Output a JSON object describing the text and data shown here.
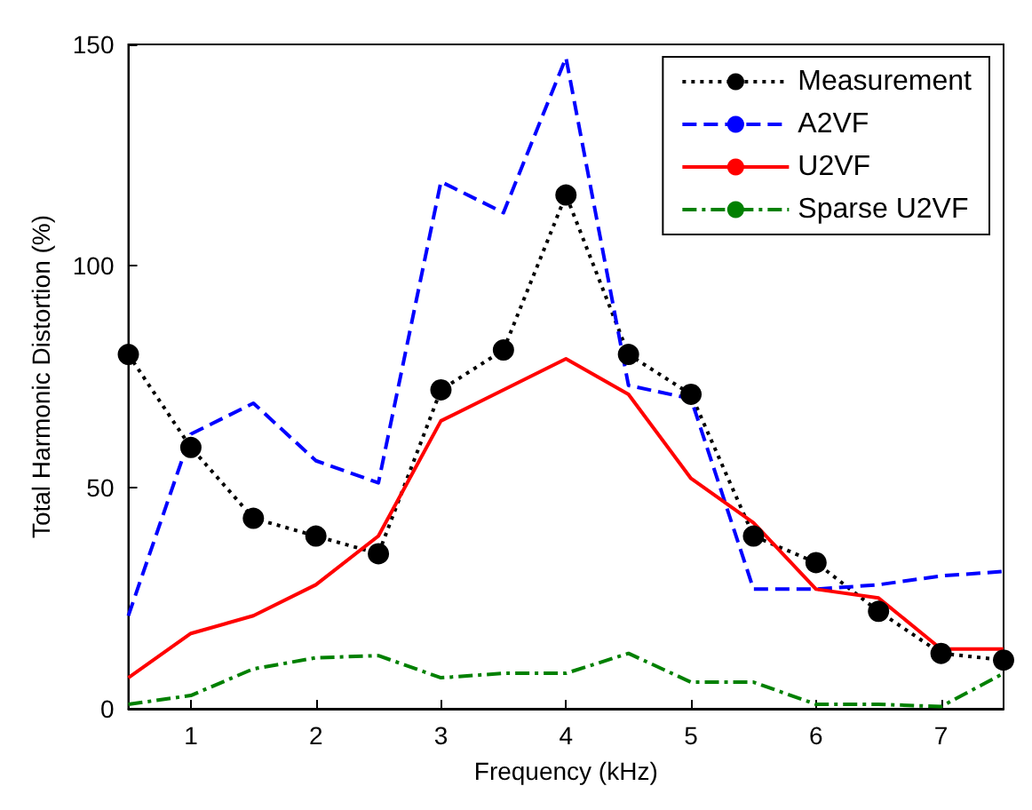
{
  "chart_data": {
    "type": "line",
    "xlabel": "Frequency (kHz)",
    "ylabel": "Total Harmonic Distortion (%)",
    "x": [
      0.5,
      1,
      1.5,
      2,
      2.5,
      3,
      3.5,
      4,
      4.5,
      5,
      5.5,
      6,
      6.5,
      7,
      7.5
    ],
    "xlim": [
      0.5,
      7.5
    ],
    "xticks": [
      1,
      2,
      3,
      4,
      5,
      6,
      7
    ],
    "ylim": [
      0,
      150
    ],
    "yticks": [
      0,
      50,
      100,
      150
    ],
    "grid": false,
    "legend": "top right",
    "series": [
      {
        "name": "Measurement",
        "color": "#000000",
        "marker": "circle",
        "line_style": "dotted",
        "values": [
          80,
          59,
          43,
          39,
          35,
          72,
          81,
          116,
          80,
          71,
          39,
          33,
          22,
          12.5,
          11
        ]
      },
      {
        "name": "A2VF",
        "color": "#0000ff",
        "marker": "none",
        "line_style": "dashed",
        "values": [
          21,
          62,
          69,
          56,
          51,
          119,
          112,
          147,
          73,
          70,
          27,
          27,
          28,
          30,
          31
        ]
      },
      {
        "name": "U2VF",
        "color": "#ff0000",
        "marker": "none",
        "line_style": "solid",
        "values": [
          7,
          17,
          21,
          28,
          39,
          65,
          72,
          79,
          71,
          52,
          42,
          27,
          25,
          13.5,
          13.5
        ]
      },
      {
        "name": "Sparse U2VF",
        "color": "#008000",
        "marker": "none",
        "line_style": "dashdot",
        "values": [
          1,
          3,
          9,
          11.5,
          12,
          7,
          8,
          8,
          12.5,
          6,
          6,
          1,
          1,
          0.5,
          8
        ]
      }
    ]
  }
}
